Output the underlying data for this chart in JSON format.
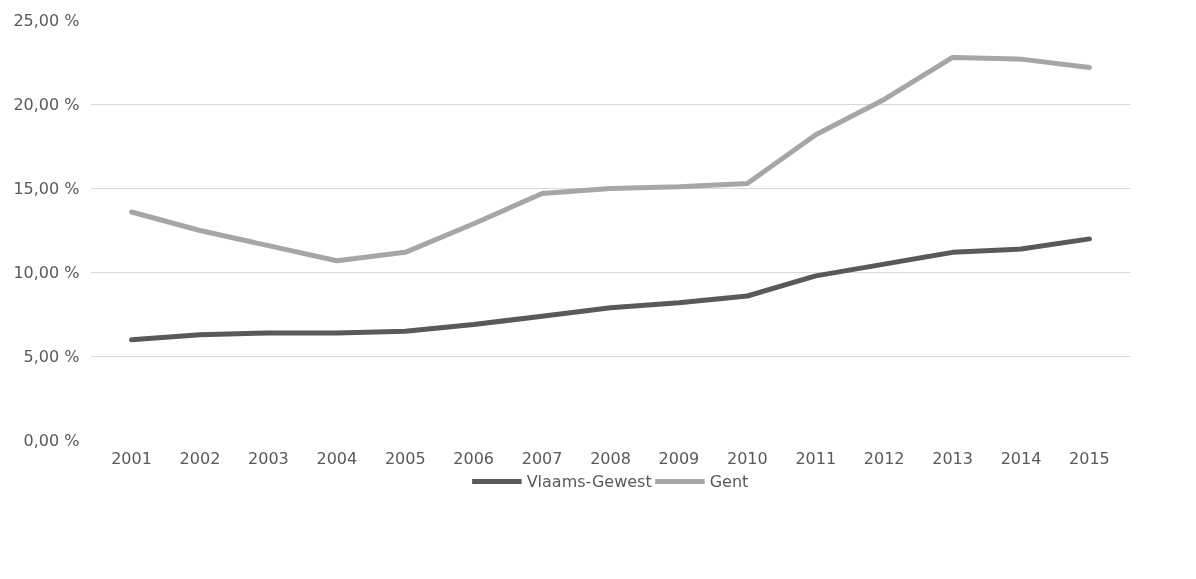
{
  "chart_data": {
    "type": "line",
    "categories": [
      "2001",
      "2002",
      "2003",
      "2004",
      "2005",
      "2006",
      "2007",
      "2008",
      "2009",
      "2010",
      "2011",
      "2012",
      "2013",
      "2014",
      "2015"
    ],
    "series": [
      {
        "name": "Vlaams-Gewest",
        "color": "#595959",
        "values": [
          6.0,
          6.3,
          6.4,
          6.4,
          6.5,
          6.9,
          7.4,
          7.9,
          8.2,
          8.6,
          9.8,
          10.5,
          11.2,
          11.4,
          12.0
        ]
      },
      {
        "name": "Gent",
        "color": "#a6a6a6",
        "values": [
          13.6,
          12.5,
          11.6,
          10.7,
          11.2,
          12.9,
          14.7,
          15.0,
          15.1,
          15.3,
          18.2,
          20.3,
          22.8,
          22.7,
          22.2
        ]
      }
    ],
    "ylim": [
      0,
      25
    ],
    "yticks": [
      {
        "value": 0,
        "label": "0,00 %"
      },
      {
        "value": 5,
        "label": "5,00 %"
      },
      {
        "value": 10,
        "label": "10,00 %"
      },
      {
        "value": 15,
        "label": "15,00 %"
      },
      {
        "value": 20,
        "label": "20,00 %"
      },
      {
        "value": 25,
        "label": "25,00 %"
      }
    ],
    "grid": "y",
    "legend": "bottom",
    "marker": "none",
    "line_style": "solid"
  }
}
